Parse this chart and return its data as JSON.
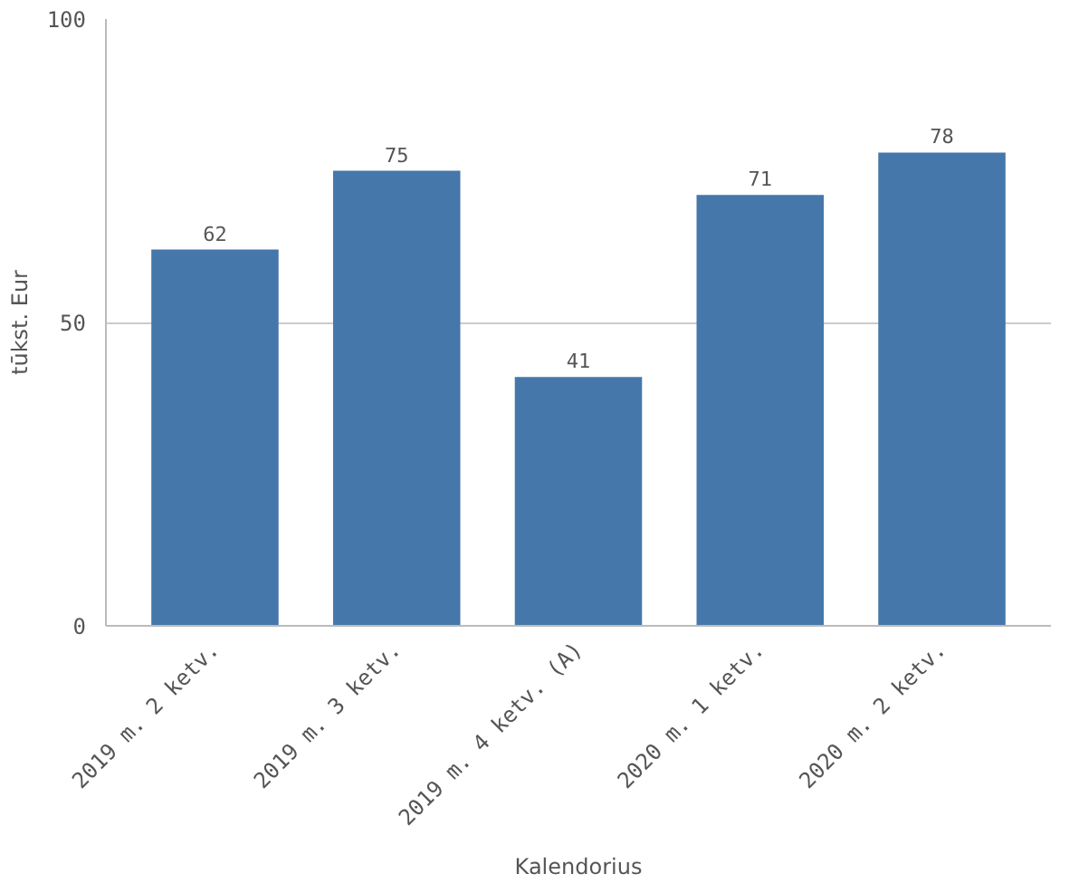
{
  "chart_data": {
    "type": "bar",
    "xlabel": "Kalendorius",
    "ylabel": "tūkst. Eur",
    "categories": [
      "2019 m. 2 ketv.",
      "2019 m. 3 ketv.",
      "2019 m. 4 ketv. (A)",
      "2020 m. 1 ketv.",
      "2020 m. 2 ketv."
    ],
    "values": [
      62,
      75,
      41,
      71,
      78
    ],
    "color": "#4577aa",
    "ylim": [
      0,
      100
    ],
    "yticks": [
      0,
      50,
      100
    ],
    "grid": "y",
    "data_labels": true
  }
}
